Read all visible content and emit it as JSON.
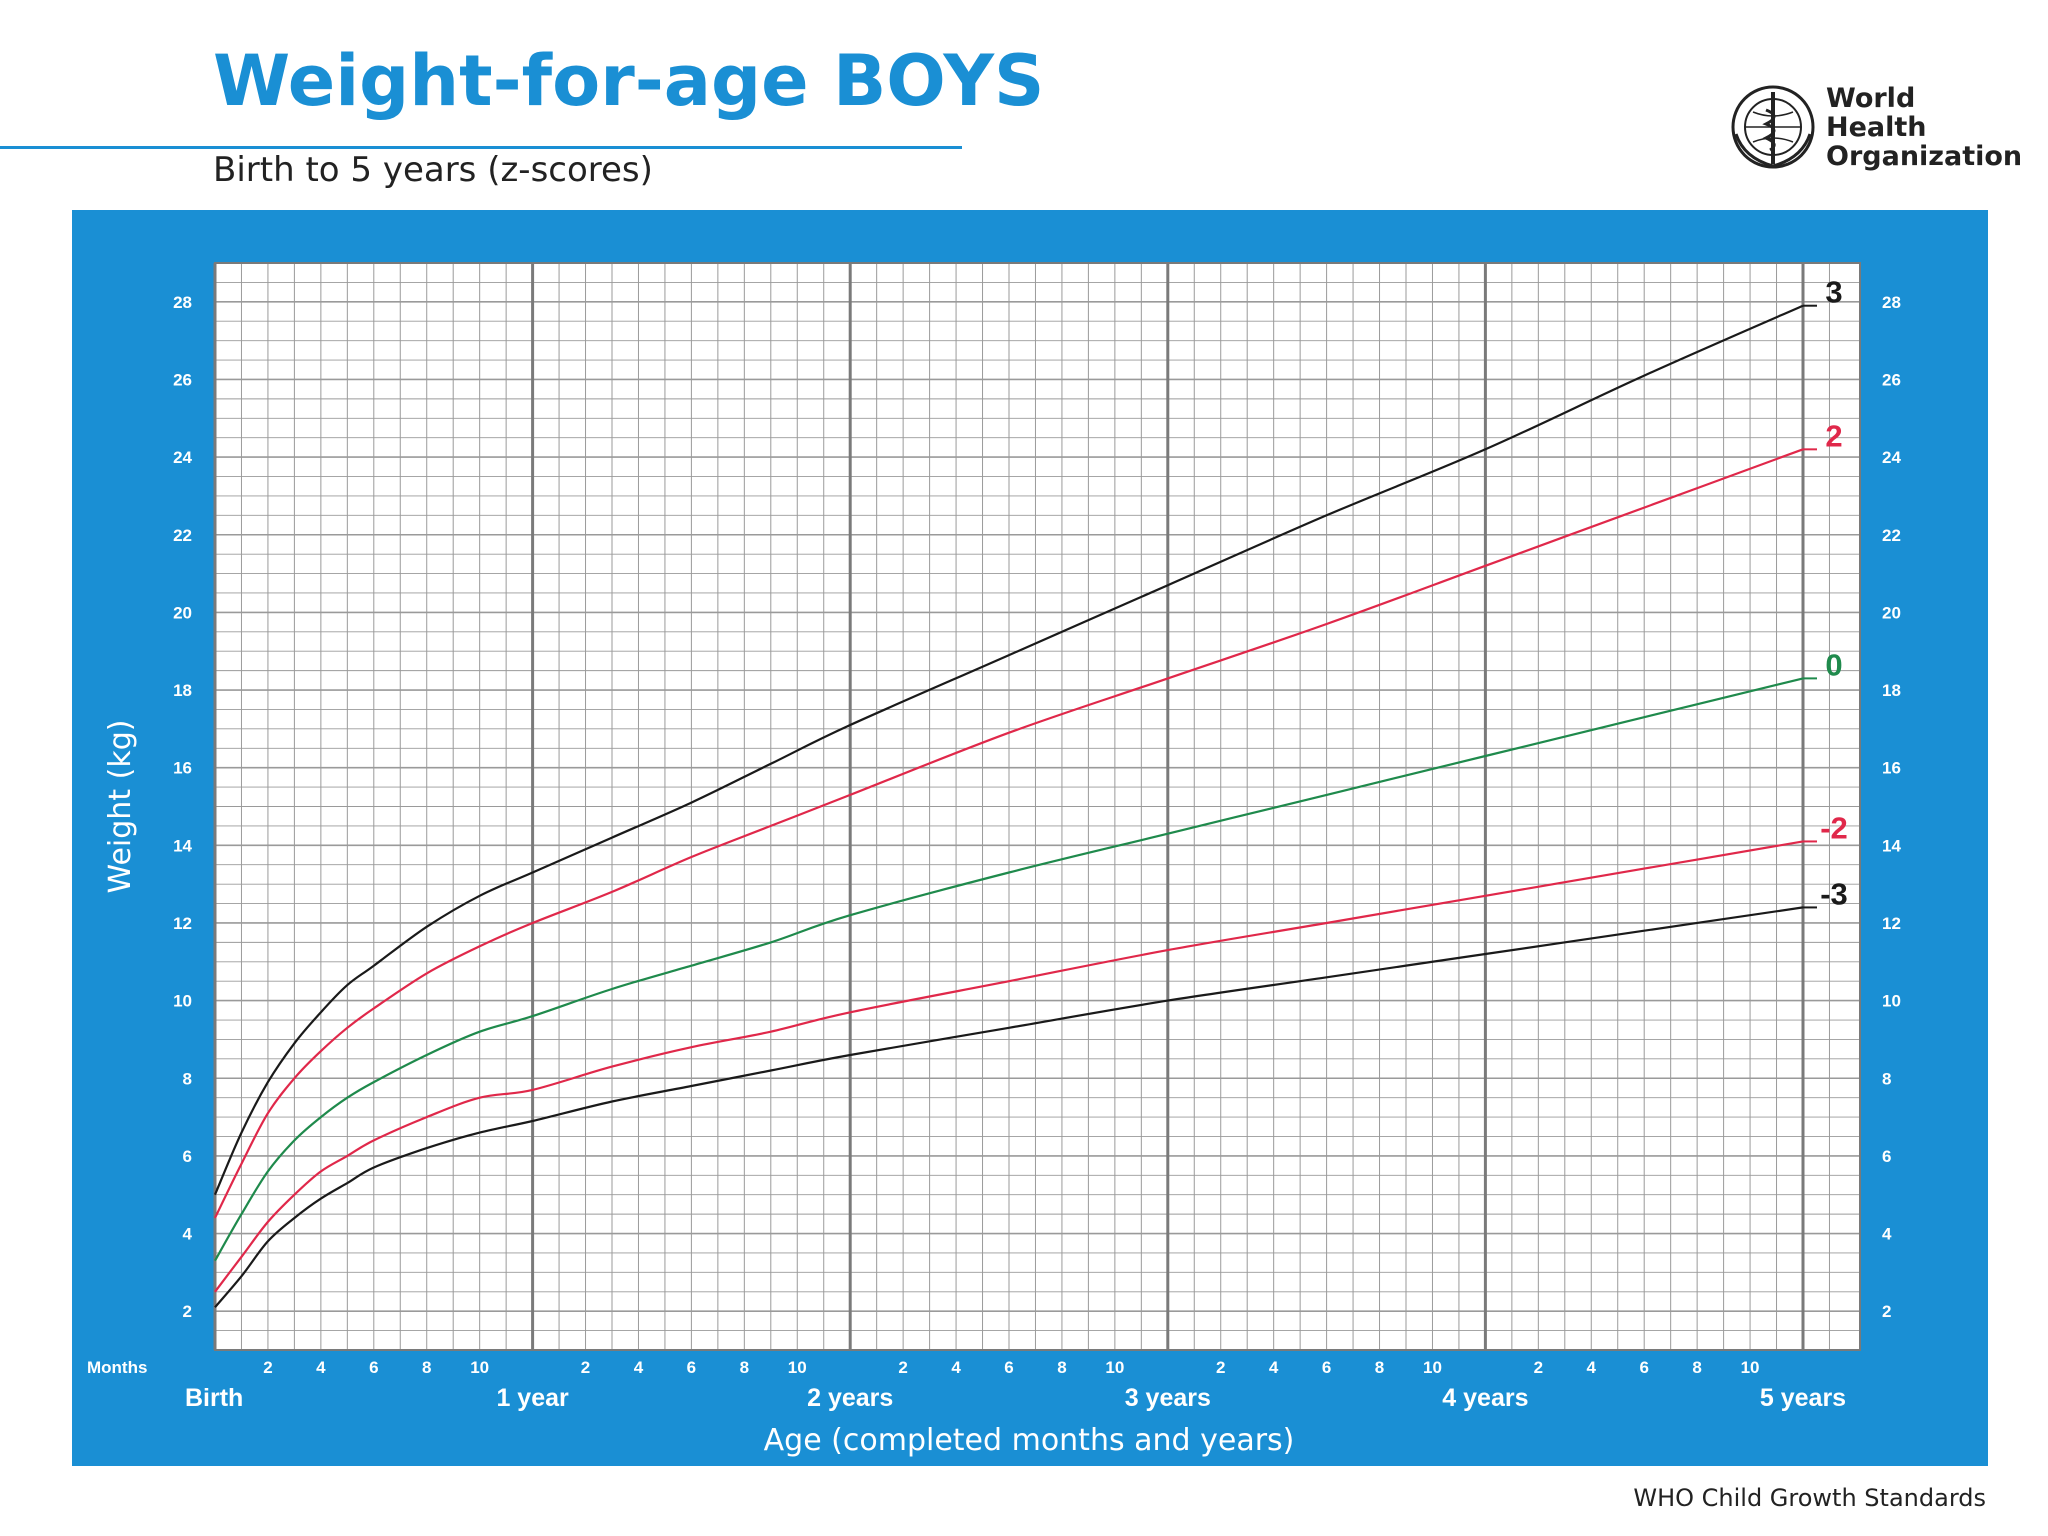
{
  "header": {
    "title": "Weight-for-age BOYS",
    "subtitle": "Birth to 5 years (z-scores)",
    "logo_line1": "World Health",
    "logo_line2": "Organization"
  },
  "footer": {
    "text": "WHO Child Growth Standards"
  },
  "colors": {
    "brand_blue": "#1a8fd4",
    "grid": "#9a9a9a",
    "z3": "#1a1a1a",
    "z2": "#e0284a",
    "z0": "#1f8a4c"
  },
  "chart_data": {
    "type": "line",
    "title": "Weight-for-age BOYS",
    "subtitle": "Birth to 5 years (z-scores)",
    "xlabel": "Age (completed months and years)",
    "ylabel": "Weight (kg)",
    "x_unit_label": "Months",
    "xlim": [
      0,
      60
    ],
    "ylim": [
      1,
      29
    ],
    "grid": true,
    "y_ticks": [
      2,
      4,
      6,
      8,
      10,
      12,
      14,
      16,
      18,
      20,
      22,
      24,
      26,
      28
    ],
    "month_tick_labels": [
      "2",
      "4",
      "6",
      "8",
      "10"
    ],
    "year_labels": [
      {
        "month": 0,
        "label": "Birth"
      },
      {
        "month": 12,
        "label": "1 year"
      },
      {
        "month": 24,
        "label": "2 years"
      },
      {
        "month": 36,
        "label": "3 years"
      },
      {
        "month": 48,
        "label": "4 years"
      },
      {
        "month": 60,
        "label": "5 years"
      }
    ],
    "x": [
      0,
      1,
      2,
      3,
      4,
      5,
      6,
      8,
      10,
      12,
      15,
      18,
      21,
      24,
      30,
      36,
      42,
      48,
      54,
      60
    ],
    "series": [
      {
        "name": "3",
        "color": "#1a1a1a",
        "values": [
          5.0,
          6.6,
          7.9,
          8.9,
          9.7,
          10.4,
          10.9,
          11.9,
          12.7,
          13.3,
          14.2,
          15.1,
          16.1,
          17.1,
          18.9,
          20.7,
          22.5,
          24.2,
          26.1,
          27.9
        ]
      },
      {
        "name": "2",
        "color": "#e0284a",
        "values": [
          4.4,
          5.8,
          7.1,
          8.0,
          8.7,
          9.3,
          9.8,
          10.7,
          11.4,
          12.0,
          12.8,
          13.7,
          14.5,
          15.3,
          16.9,
          18.3,
          19.7,
          21.2,
          22.7,
          24.2
        ]
      },
      {
        "name": "0",
        "color": "#1f8a4c",
        "values": [
          3.3,
          4.5,
          5.6,
          6.4,
          7.0,
          7.5,
          7.9,
          8.6,
          9.2,
          9.6,
          10.3,
          10.9,
          11.5,
          12.2,
          13.3,
          14.3,
          15.3,
          16.3,
          17.3,
          18.3
        ]
      },
      {
        "name": "-2",
        "color": "#e0284a",
        "values": [
          2.5,
          3.4,
          4.3,
          5.0,
          5.6,
          6.0,
          6.4,
          7.0,
          7.5,
          7.7,
          8.3,
          8.8,
          9.2,
          9.7,
          10.5,
          11.3,
          12.0,
          12.7,
          13.4,
          14.1
        ]
      },
      {
        "name": "-3",
        "color": "#1a1a1a",
        "values": [
          2.1,
          2.9,
          3.8,
          4.4,
          4.9,
          5.3,
          5.7,
          6.2,
          6.6,
          6.9,
          7.4,
          7.8,
          8.2,
          8.6,
          9.3,
          10.0,
          10.6,
          11.2,
          11.8,
          12.4
        ]
      }
    ]
  }
}
